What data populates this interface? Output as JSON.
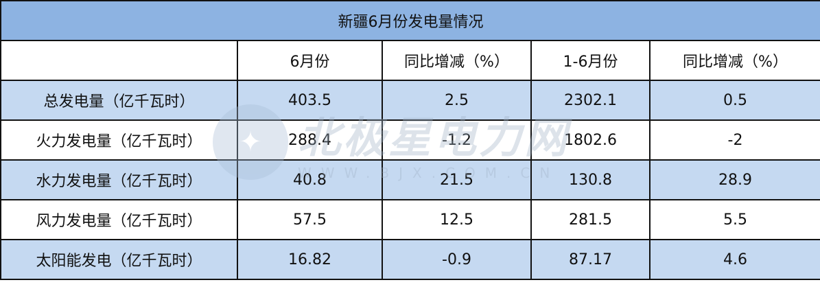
{
  "title": "新疆6月份发电量情况",
  "headers": [
    "",
    "6月份",
    "同比增减（%）",
    "1-6月份",
    "同比增减（%）"
  ],
  "rows": [
    [
      "总发电量（亿千瓦时）",
      "403.5",
      "2.5",
      "2302.1",
      "0.5"
    ],
    [
      "火力发电量（亿千瓦时）",
      "288.4",
      "-1.2",
      "1802.6",
      "-2"
    ],
    [
      "水力发电量（亿千瓦时）",
      "40.8",
      "21.5",
      "130.8",
      "28.9"
    ],
    [
      "风力发电量（亿千瓦时）",
      "57.5",
      "12.5",
      "281.5",
      "5.5"
    ],
    [
      "太阳能发电（亿千瓦时）",
      "16.82",
      "-0.9",
      "87.17",
      "4.6"
    ]
  ],
  "watermark": {
    "name": "北极星电力网",
    "url": "WWW.BJX.COM.CN"
  },
  "colors": {
    "title_bg": "#8db3e2",
    "band_bg": "#c5d9f1"
  }
}
